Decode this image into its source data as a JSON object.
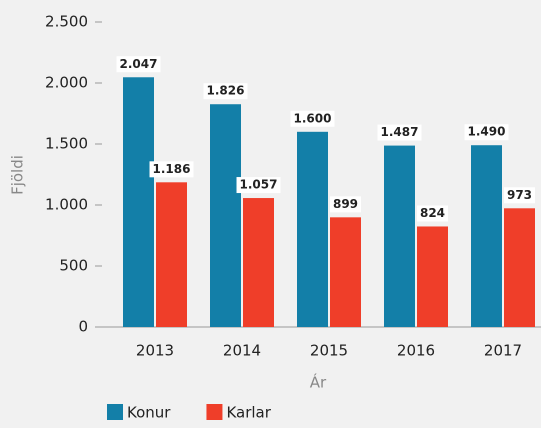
{
  "chart_data": {
    "type": "bar",
    "categories": [
      "2013",
      "2014",
      "2015",
      "2016",
      "2017"
    ],
    "series": [
      {
        "name": "Konur",
        "color": "#137fa8",
        "values": [
          2047,
          1826,
          1600,
          1487,
          1490
        ],
        "value_labels": [
          "2.047",
          "1.826",
          "1.600",
          "1.487",
          "1.490"
        ]
      },
      {
        "name": "Karlar",
        "color": "#ef3e29",
        "values": [
          1186,
          1057,
          899,
          824,
          973
        ],
        "value_labels": [
          "1.186",
          "1.057",
          "899",
          "824",
          "973"
        ]
      }
    ],
    "ylim": [
      0,
      2500
    ],
    "yticks": [
      0,
      500,
      {
        "value": 1000,
        "label": "1.000"
      },
      {
        "value": 1500,
        "label": "1.500"
      },
      {
        "value": 2000,
        "label": "2.000"
      },
      {
        "value": 2500,
        "label": "2.500"
      }
    ],
    "xlabel": "Ár",
    "ylabel": "Fjöldi",
    "legend": "bottom-left"
  }
}
